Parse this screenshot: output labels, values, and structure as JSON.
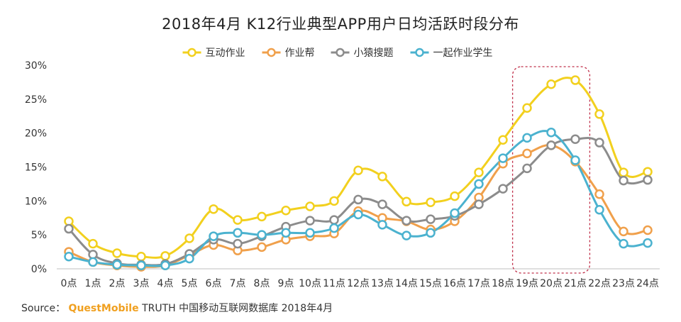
{
  "chart_data": {
    "type": "line",
    "title": "2018年4月 K12行业典型APP用户日均活跃时段分布",
    "categories": [
      "0点",
      "1点",
      "2点",
      "3点",
      "4点",
      "5点",
      "6点",
      "7点",
      "8点",
      "9点",
      "10点",
      "11点",
      "12点",
      "13点",
      "14点",
      "15点",
      "16点",
      "17点",
      "18点",
      "19点",
      "20点",
      "21点",
      "22点",
      "23点",
      "24点"
    ],
    "ylim": [
      0,
      30
    ],
    "yticks": [
      "0%",
      "5%",
      "10%",
      "15%",
      "20%",
      "25%",
      "30%"
    ],
    "ytick_values": [
      0,
      5,
      10,
      15,
      20,
      25,
      30
    ],
    "grid": false,
    "legend_position": "top-center",
    "highlight_range": [
      "19点",
      "21点"
    ],
    "series": [
      {
        "name": "互动作业",
        "color": "#f2d01e",
        "values": [
          7.0,
          3.7,
          2.3,
          1.8,
          1.9,
          4.5,
          8.8,
          7.2,
          7.7,
          8.6,
          9.2,
          10.0,
          14.5,
          13.6,
          9.9,
          9.8,
          10.7,
          14.2,
          19.0,
          23.7,
          27.2,
          27.8,
          22.8,
          14.2,
          14.3
        ]
      },
      {
        "name": "作业帮",
        "color": "#f0a04b",
        "values": [
          2.5,
          1.0,
          0.5,
          0.3,
          0.5,
          2.0,
          3.5,
          2.7,
          3.2,
          4.3,
          4.8,
          5.2,
          8.5,
          7.5,
          7.0,
          5.8,
          7.0,
          10.5,
          15.5,
          17.0,
          18.2,
          15.8,
          11.0,
          5.5,
          5.7
        ]
      },
      {
        "name": "小猿搜题",
        "color": "#8c8c8c",
        "values": [
          5.9,
          2.1,
          0.8,
          0.6,
          0.7,
          2.2,
          4.3,
          3.7,
          4.8,
          6.2,
          7.1,
          7.2,
          10.2,
          9.5,
          7.1,
          7.3,
          7.8,
          9.5,
          11.8,
          14.8,
          18.2,
          19.1,
          18.6,
          13.0,
          13.1
        ]
      },
      {
        "name": "一起作业学生",
        "color": "#4bb2cf",
        "values": [
          1.8,
          1.0,
          0.6,
          0.5,
          0.5,
          1.5,
          4.8,
          5.3,
          5.0,
          5.3,
          5.3,
          6.0,
          8.0,
          6.5,
          4.9,
          5.3,
          8.2,
          12.5,
          16.3,
          19.3,
          20.1,
          16.0,
          8.7,
          3.7,
          3.8
        ]
      }
    ]
  },
  "source": {
    "prefix": "Source：",
    "brand": "QuestMobile",
    "rest": "TRUTH 中国移动互联网数据库 2018年4月"
  }
}
